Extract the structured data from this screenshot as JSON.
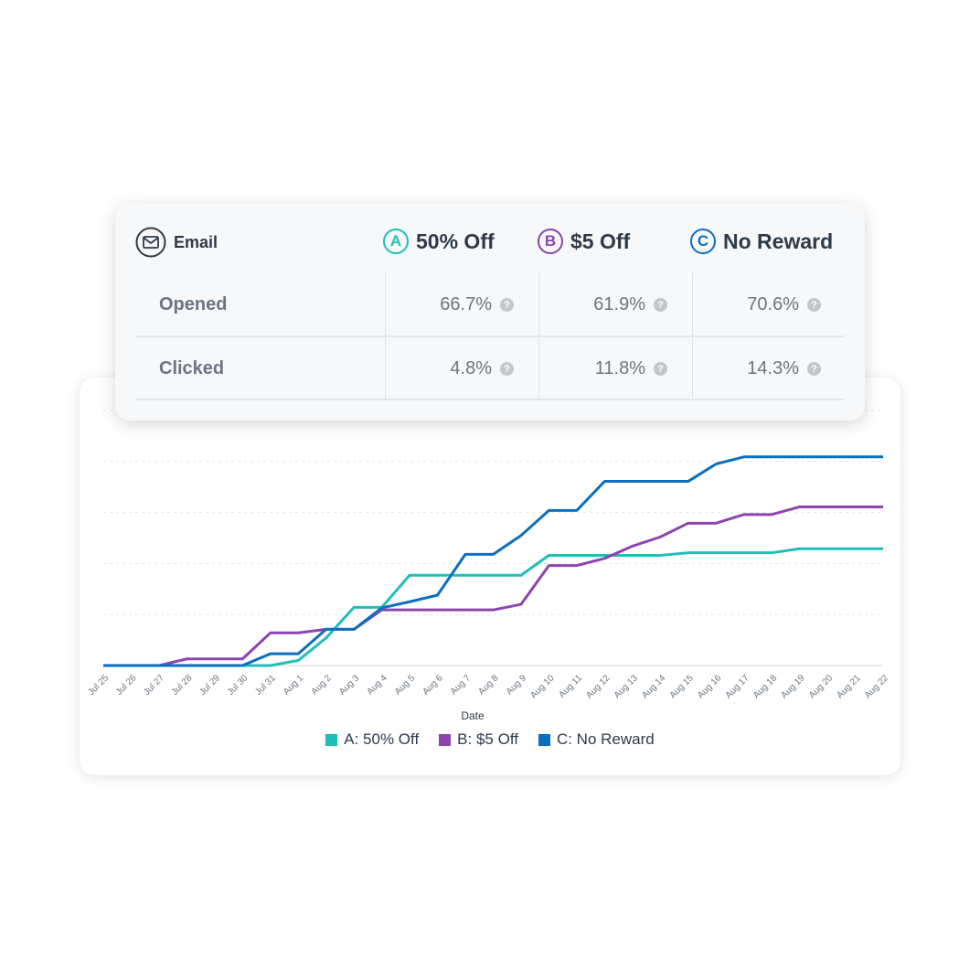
{
  "table": {
    "channel_label": "Email",
    "variants": [
      {
        "letter": "A",
        "name": "50% Off",
        "color": "#1fbfb8"
      },
      {
        "letter": "B",
        "name": "$5 Off",
        "color": "#8e44b0"
      },
      {
        "letter": "C",
        "name": "No Reward",
        "color": "#0b6fbf"
      }
    ],
    "rows": [
      {
        "label": "Opened",
        "values": [
          "66.7%",
          "61.9%",
          "70.6%"
        ]
      },
      {
        "label": "Clicked",
        "values": [
          "4.8%",
          "11.8%",
          "14.3%"
        ]
      }
    ],
    "help_glyph": "?"
  },
  "chart_data": {
    "type": "line",
    "title": "",
    "xlabel": "Date",
    "ylabel": "",
    "ylim": [
      0,
      5
    ],
    "grid": true,
    "legend_position": "bottom-center",
    "x": [
      "Jul 25",
      "Jul 26",
      "Jul 27",
      "Jul 28",
      "Jul 29",
      "Jul 30",
      "Jul 31",
      "Aug 1",
      "Aug 2",
      "Aug 3",
      "Aug 4",
      "Aug 5",
      "Aug 6",
      "Aug 7",
      "Aug 8",
      "Aug 9",
      "Aug 10",
      "Aug 11",
      "Aug 12",
      "Aug 13",
      "Aug 14",
      "Aug 15",
      "Aug 16",
      "Aug 17",
      "Aug 18",
      "Aug 19",
      "Aug 20",
      "Aug 21",
      "Aug 22"
    ],
    "series": [
      {
        "name": "A: 50% Off",
        "color": "#1fbfb8",
        "values": [
          0,
          0,
          0,
          0,
          0,
          0,
          0,
          0.1,
          0.54,
          1.14,
          1.14,
          1.77,
          1.77,
          1.77,
          1.77,
          1.77,
          2.16,
          2.16,
          2.16,
          2.16,
          2.16,
          2.21,
          2.21,
          2.21,
          2.21,
          2.29,
          2.29,
          2.29,
          2.29
        ]
      },
      {
        "name": "B: $5 Off",
        "color": "#8e44b0",
        "values": [
          0,
          0,
          0,
          0.13,
          0.13,
          0.13,
          0.64,
          0.64,
          0.71,
          0.71,
          1.09,
          1.09,
          1.09,
          1.09,
          1.09,
          1.2,
          1.96,
          1.96,
          2.1,
          2.34,
          2.52,
          2.79,
          2.79,
          2.96,
          2.96,
          3.11,
          3.11,
          3.11,
          3.11
        ]
      },
      {
        "name": "C: No Reward",
        "color": "#0b6fbf",
        "values": [
          0,
          0,
          0,
          0,
          0,
          0,
          0.23,
          0.23,
          0.71,
          0.71,
          1.13,
          1.25,
          1.38,
          2.18,
          2.18,
          2.55,
          3.04,
          3.04,
          3.61,
          3.61,
          3.61,
          3.61,
          3.95,
          4.09,
          4.09,
          4.09,
          4.09,
          4.09,
          4.09
        ]
      }
    ]
  }
}
